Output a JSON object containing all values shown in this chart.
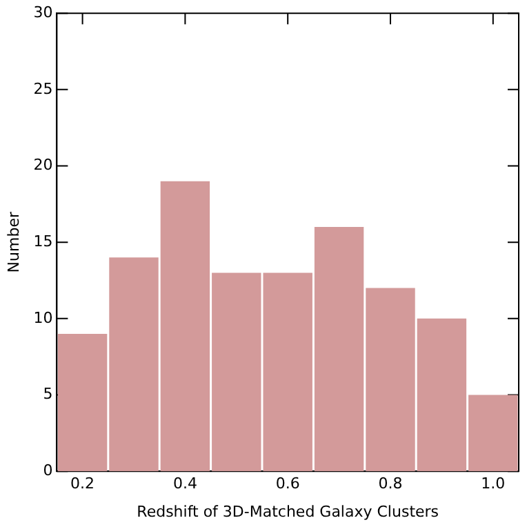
{
  "chart_data": {
    "type": "histogram",
    "xlabel": "Redshift of 3D-Matched Galaxy Clusters",
    "ylabel": "Number",
    "bins": [
      0.15,
      0.25,
      0.35,
      0.45,
      0.55,
      0.65,
      0.75,
      0.85,
      0.95,
      1.05
    ],
    "values": [
      9,
      14,
      19,
      13,
      13,
      16,
      12,
      10,
      5
    ],
    "color": "#d39a9a",
    "xlim": [
      0.15,
      1.05
    ],
    "xticks": [
      {
        "value": 0.2,
        "label": "0.2"
      },
      {
        "value": 0.4,
        "label": "0.4"
      },
      {
        "value": 0.6,
        "label": "0.6"
      },
      {
        "value": 0.8,
        "label": "0.8"
      },
      {
        "value": 1.0,
        "label": "1.0"
      }
    ],
    "ylim": [
      0,
      30
    ],
    "yticks": [
      0,
      5,
      10,
      15,
      20,
      25,
      30
    ],
    "grid": false,
    "legend": false
  }
}
